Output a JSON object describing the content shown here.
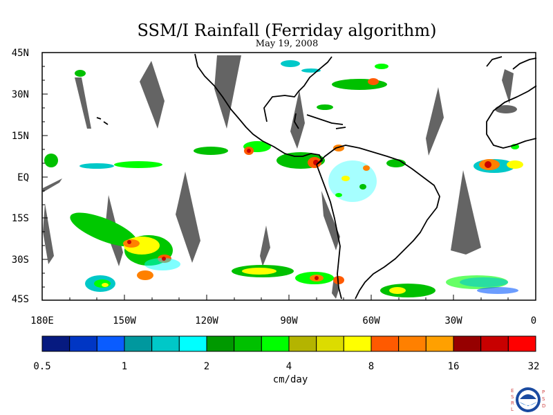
{
  "title": "SSM/I Rainfall (Ferriday algorithm)",
  "date": "May 19, 2008",
  "lat_labels": [
    "45N",
    "30N",
    "15N",
    "EQ",
    "15S",
    "30S",
    "45S"
  ],
  "lon_labels": [
    "180E",
    "150W",
    "120W",
    "90W",
    "60W",
    "30W",
    "0"
  ],
  "colorbar": {
    "colors": [
      "#061a80",
      "#0036c4",
      "#0a5cff",
      "#00989e",
      "#00c8c8",
      "#00ffff",
      "#009900",
      "#00c000",
      "#00ff00",
      "#b4b400",
      "#dcdc00",
      "#ffff00",
      "#ff5a00",
      "#ff8000",
      "#ffa000",
      "#960000",
      "#c80000",
      "#ff0000"
    ],
    "labels": [
      "0.5",
      "1",
      "2",
      "4",
      "8",
      "16",
      "32"
    ],
    "units": "cm/day"
  },
  "logo": {
    "left_letters": [
      "E",
      "S",
      "R",
      "L"
    ],
    "right_letters": [
      "P",
      "S",
      "D"
    ],
    "seal_text": "NOAA",
    "icon": "noaa-seal-icon"
  },
  "colors": {
    "missing_swath": "#646464",
    "coast": "#000000",
    "background": "#ffffff"
  }
}
